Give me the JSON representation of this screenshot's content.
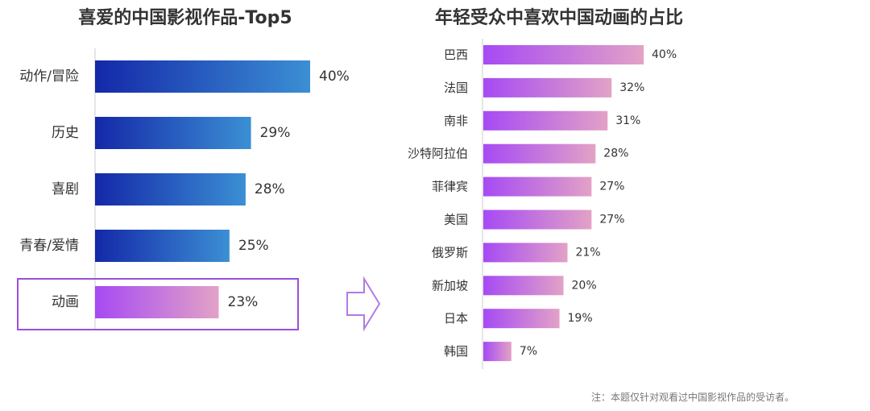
{
  "chart_data": [
    {
      "type": "bar",
      "orientation": "horizontal",
      "title": "喜爱的中国影视作品-Top5",
      "categories": [
        "动作/冒险",
        "历史",
        "喜剧",
        "青春/爱情",
        "动画"
      ],
      "values": [
        40,
        29,
        28,
        25,
        23
      ],
      "value_labels": [
        "40%",
        "29%",
        "28%",
        "25%",
        "23%"
      ],
      "unit": "%",
      "xlim": [
        0,
        40
      ],
      "grid": false,
      "highlight_category": "动画"
    },
    {
      "type": "bar",
      "orientation": "horizontal",
      "title": "年轻受众中喜欢中国动画的占比",
      "categories": [
        "巴西",
        "法国",
        "南非",
        "沙特阿拉伯",
        "菲律宾",
        "美国",
        "俄罗斯",
        "新加坡",
        "日本",
        "韩国"
      ],
      "values": [
        40,
        32,
        31,
        28,
        27,
        27,
        21,
        20,
        19,
        7
      ],
      "value_labels": [
        "40%",
        "32%",
        "31%",
        "28%",
        "27%",
        "27%",
        "21%",
        "20%",
        "19%",
        "7%"
      ],
      "unit": "%",
      "xlim": [
        0,
        40
      ],
      "grid": false
    }
  ],
  "footnote": "注：本题仅针对观看过中国影视作品的受访者。",
  "colors": {
    "blue_start": "#1428a8",
    "blue_end": "#3b8fd4",
    "purple_start": "#a64af4",
    "purple_end": "#e2a2c6",
    "highlight_border": "#9a50d8",
    "arrow": "#b27ae6",
    "axis": "#cccccc",
    "text": "#333333"
  },
  "icons": {
    "connector": "hollow-right-arrow-icon"
  }
}
